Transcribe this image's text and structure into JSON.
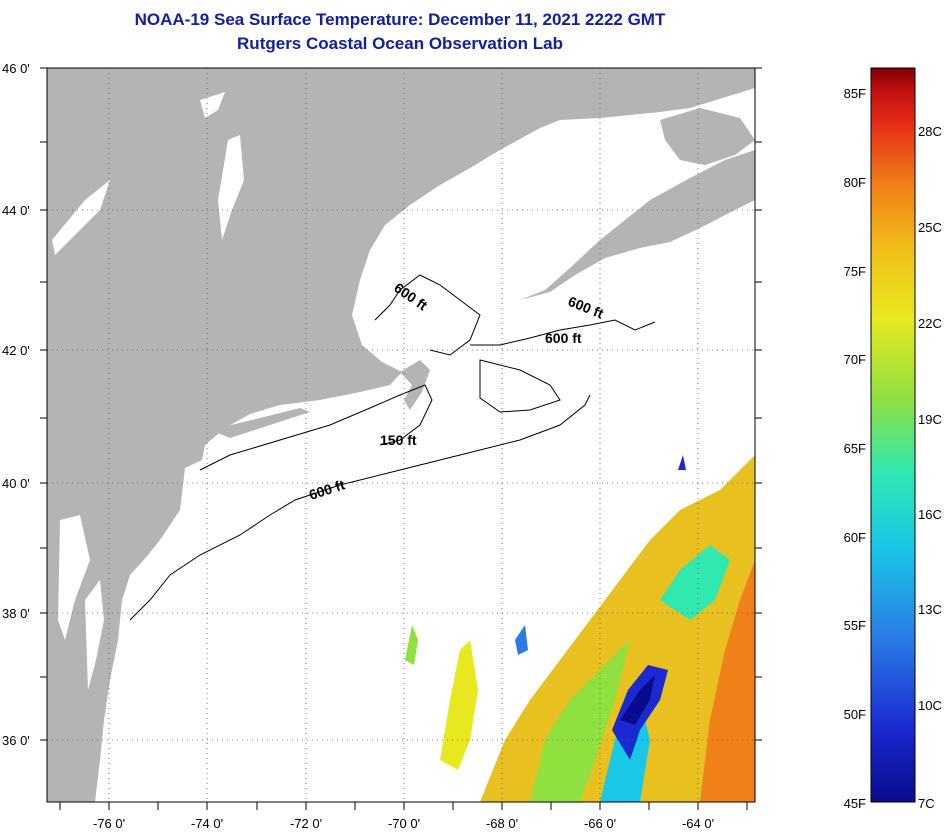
{
  "header": {
    "title": "NOAA-19 Sea Surface Temperature:  December 11, 2021 2222 GMT",
    "subtitle": "Rutgers Coastal Ocean Observation Lab"
  },
  "map": {
    "lat_labels": [
      "46 0'",
      "44 0'",
      "42 0'",
      "40 0'",
      "38 0'",
      "36 0'"
    ],
    "lon_labels": [
      "-76 0'",
      "-74 0'",
      "-72 0'",
      "-70 0'",
      "-68 0'",
      "-66 0'",
      "-64 0'"
    ],
    "contours": [
      "600 ft",
      "600 ft",
      "600 ft",
      "150 ft",
      "600 ft"
    ]
  },
  "colorbar": {
    "fahrenheit": [
      "85F",
      "80F",
      "75F",
      "70F",
      "65F",
      "60F",
      "55F",
      "50F",
      "45F"
    ],
    "celsius": [
      "28C",
      "25C",
      "22C",
      "19C",
      "16C",
      "13C",
      "10C",
      "7C"
    ]
  },
  "colors": {
    "land": "#b4b4b4",
    "title": "#1020a0",
    "scale": [
      "#0a0a8c",
      "#1a2ad0",
      "#2a7ae6",
      "#18c8e6",
      "#30e8b0",
      "#90e040",
      "#e8e820",
      "#f0c018",
      "#f08018",
      "#e83018",
      "#c01010",
      "#800000"
    ]
  }
}
